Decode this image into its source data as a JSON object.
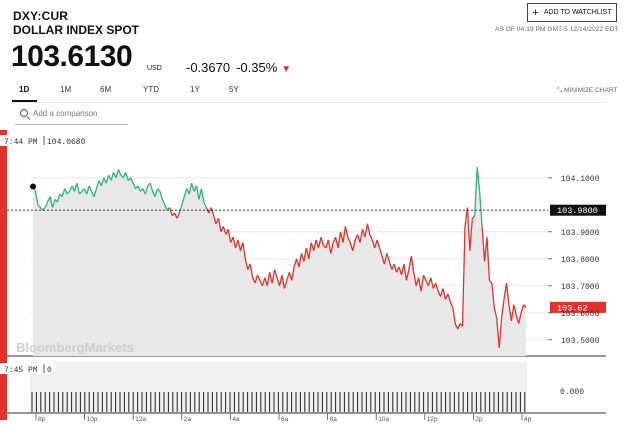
{
  "header": {
    "ticker": "DXY:CUR",
    "name": "DOLLAR INDEX SPOT",
    "price": "103.6130",
    "currency": "USD",
    "change": "-0.3670",
    "change_pct": "-0.35%",
    "watchlist_label": "ADD TO WATCHLIST",
    "as_of": "AS OF 04:19 PM GMT-5 12/14/2022 EDT"
  },
  "tabs": [
    "1D",
    "1M",
    "6M",
    "YTD",
    "1Y",
    "5Y"
  ],
  "active_tab": "1D",
  "minimize_label": "MINIMIZE CHART",
  "compare": {
    "placeholder": "Add a comparison"
  },
  "icons": {
    "search": "search-icon",
    "plus": "plus-icon",
    "minimize": "minimize-icon",
    "arrow": "down-arrow-icon"
  },
  "colors": {
    "up": "#2bb673",
    "down": "#e4312b",
    "accent": "#e4312b"
  },
  "chart_data": {
    "type": "line",
    "watermark": "BloombergMarkets",
    "crosshair": {
      "time": "7:44 PM",
      "value": "104.0680"
    },
    "volume_crosshair": {
      "time": "7:45 PM",
      "value": "0"
    },
    "reference_value": "103.9800",
    "last_value": "103.62",
    "y_ticks": [
      "104.1000",
      "103.9000",
      "103.8000",
      "103.7000",
      "103.6000",
      "103.5000"
    ],
    "volume_tick": "0.000",
    "x_ticks": [
      "8p",
      "10p",
      "12a",
      "2a",
      "4a",
      "6a",
      "8a",
      "10a",
      "12p",
      "2p",
      "4p"
    ],
    "ylim": [
      103.44,
      104.24
    ],
    "series": [
      {
        "values": [
          104.07,
          104.05,
          104.0,
          103.99,
          103.98,
          103.99,
          104.01,
          104.03,
          103.99,
          104.02,
          104.01,
          104.04,
          104.03,
          104.06,
          104.04,
          104.05,
          104.07,
          104.05,
          104.08,
          104.04,
          104.05,
          104.06,
          104.04,
          104.07,
          104.05,
          104.03,
          104.06,
          104.09,
          104.07,
          104.1,
          104.08,
          104.11,
          104.09,
          104.12,
          104.1,
          104.13,
          104.11,
          104.1,
          104.12,
          104.09,
          104.1,
          104.08,
          104.06,
          104.07,
          104.05,
          104.06,
          104.04,
          104.07,
          104.08,
          104.05,
          104.03,
          104.06,
          104.05,
          104.02,
          104.0,
          103.98,
          103.99,
          103.96,
          103.97,
          103.95,
          103.97,
          104.0,
          104.03,
          104.06,
          104.04,
          104.08,
          104.05,
          104.07,
          104.02,
          104.06,
          104.01,
          103.99,
          103.97,
          103.99,
          103.96,
          103.93,
          103.95,
          103.9,
          103.92,
          103.89,
          103.91,
          103.86,
          103.88,
          103.84,
          103.87,
          103.83,
          103.86,
          103.8,
          103.76,
          103.78,
          103.73,
          103.71,
          103.74,
          103.72,
          103.7,
          103.73,
          103.7,
          103.75,
          103.71,
          103.76,
          103.73,
          103.7,
          103.74,
          103.69,
          103.72,
          103.75,
          103.72,
          103.77,
          103.8,
          103.77,
          103.82,
          103.79,
          103.84,
          103.8,
          103.86,
          103.83,
          103.87,
          103.84,
          103.88,
          103.85,
          103.84,
          103.87,
          103.82,
          103.86,
          103.88,
          103.84,
          103.9,
          103.86,
          103.92,
          103.88,
          103.86,
          103.83,
          103.87,
          103.89,
          103.86,
          103.91,
          103.88,
          103.93,
          103.89,
          103.87,
          103.84,
          103.87,
          103.84,
          103.81,
          103.78,
          103.82,
          103.79,
          103.76,
          103.78,
          103.75,
          103.77,
          103.74,
          103.78,
          103.72,
          103.76,
          103.81,
          103.75,
          103.7,
          103.73,
          103.68,
          103.74,
          103.72,
          103.7,
          103.73,
          103.69,
          103.71,
          103.68,
          103.66,
          103.69,
          103.65,
          103.67,
          103.64,
          103.62,
          103.56,
          103.54,
          103.56,
          103.55,
          103.92,
          103.99,
          103.83,
          103.95,
          103.96,
          104.14,
          104.05,
          103.92,
          103.79,
          103.88,
          103.72,
          103.71,
          103.62,
          103.58,
          103.47,
          103.58,
          103.65,
          103.71,
          103.63,
          103.57,
          103.63,
          103.59,
          103.56,
          103.6,
          103.63,
          103.62
        ]
      }
    ]
  }
}
